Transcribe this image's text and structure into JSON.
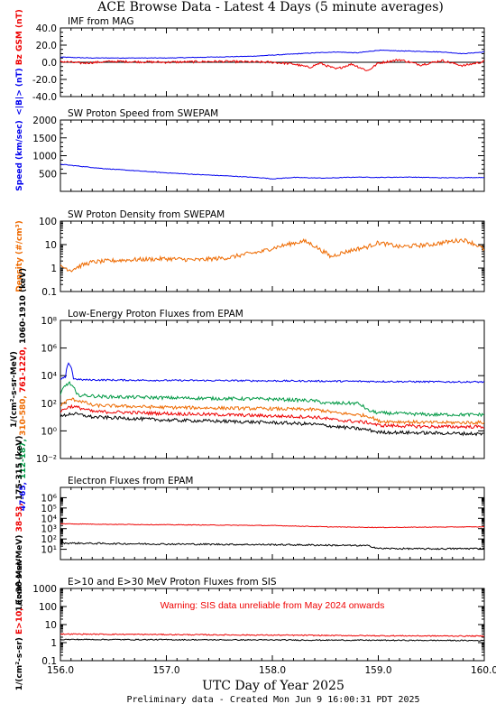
{
  "page": {
    "title": "ACE Browse Data - Latest 4 Days (5 minute averages)",
    "xlabel": "UTC Day of Year 2025",
    "footer": "Preliminary data - Created Mon Jun  9 16:00:31 PDT 2025"
  },
  "colors": {
    "blue": "#0000ee",
    "red": "#ee0000",
    "orange": "#ee6a00",
    "green": "#009944",
    "black": "#000000"
  },
  "x_axis": {
    "range": [
      156.0,
      160.0
    ],
    "ticks": [
      156.0,
      157.0,
      158.0,
      159.0,
      160.0
    ],
    "tick_labels": [
      "156.0",
      "157.0",
      "158.0",
      "159.0",
      "160.0"
    ]
  },
  "chart_data": [
    {
      "type": "line",
      "title": "IMF from MAG",
      "scale": "linear",
      "ylim": [
        -40,
        40
      ],
      "yticks": [
        -40,
        -20,
        0,
        20,
        40
      ],
      "ytick_labels": [
        "-40.0",
        "-20.0",
        "0.0",
        "20.0",
        "40.0"
      ],
      "zero_line": true,
      "ylabel_parts": [
        {
          "text": "<|B|> (nT)",
          "color": "#0000ee"
        },
        {
          "text": "Bz GSM (nT)",
          "color": "#ee0000"
        }
      ],
      "series": [
        {
          "label": "<|B|>",
          "color": "#0000ee",
          "noise": 0.35,
          "x": [
            156.0,
            156.3,
            156.6,
            157.0,
            157.4,
            157.8,
            158.1,
            158.4,
            158.6,
            158.8,
            159.0,
            159.3,
            159.6,
            159.8,
            160.0
          ],
          "y": [
            6,
            5,
            5,
            5,
            6,
            7,
            9,
            11,
            12,
            11,
            14,
            13,
            12,
            10,
            12
          ]
        },
        {
          "label": "Bz GSM",
          "color": "#ee0000",
          "noise": 1.3,
          "x": [
            156.0,
            156.2,
            156.5,
            157.0,
            157.5,
            158.0,
            158.2,
            158.35,
            158.45,
            158.6,
            158.75,
            158.9,
            159.0,
            159.2,
            159.4,
            159.6,
            159.8,
            160.0
          ],
          "y": [
            1,
            -1,
            1,
            0,
            1,
            0,
            -2,
            -6,
            -1,
            -8,
            -2,
            -10,
            -1,
            3,
            -3,
            2,
            -4,
            1
          ]
        }
      ]
    },
    {
      "type": "line",
      "title": "SW Proton Speed from SWEPAM",
      "scale": "linear",
      "ylim": [
        0,
        2000
      ],
      "yticks": [
        500,
        1000,
        1500,
        2000
      ],
      "ytick_labels": [
        "500",
        "1000",
        "1500",
        "2000"
      ],
      "ylabel_parts": [
        {
          "text": "Speed (km/sec)",
          "color": "#0000ee"
        }
      ],
      "series": [
        {
          "label": "Speed",
          "color": "#0000ee",
          "noise": 8,
          "x": [
            156.0,
            156.2,
            156.4,
            156.6,
            156.8,
            157.0,
            157.3,
            157.6,
            157.9,
            158.0,
            158.2,
            158.5,
            158.8,
            159.0,
            159.3,
            159.6,
            160.0
          ],
          "y": [
            760,
            700,
            640,
            600,
            560,
            520,
            470,
            430,
            380,
            350,
            390,
            370,
            400,
            390,
            400,
            380,
            390
          ]
        }
      ]
    },
    {
      "type": "line",
      "title": "SW Proton Density from SWEPAM",
      "scale": "log",
      "ylim": [
        0.1,
        100
      ],
      "yticks": [
        0.1,
        1,
        10,
        100
      ],
      "ytick_labels": [
        "0.1",
        "1",
        "10",
        "100"
      ],
      "ylabel_parts": [
        {
          "text": "Density (#/cm³)",
          "color": "#ee6a00"
        }
      ],
      "series": [
        {
          "label": "Density",
          "color": "#ee6a00",
          "noise": 0.09,
          "x": [
            156.0,
            156.1,
            156.3,
            156.6,
            157.0,
            157.3,
            157.6,
            157.9,
            158.1,
            158.3,
            158.45,
            158.55,
            158.7,
            158.9,
            159.0,
            159.2,
            159.5,
            159.8,
            160.0
          ],
          "y": [
            1.2,
            0.8,
            1.8,
            2.2,
            2.5,
            2.2,
            2.8,
            5,
            9,
            14,
            6,
            3,
            5,
            8,
            12,
            8,
            10,
            16,
            6
          ]
        }
      ]
    },
    {
      "type": "line",
      "title": "Low-Energy Proton Fluxes from EPAM",
      "scale": "log",
      "ylim": [
        0.01,
        100000000
      ],
      "yticks": [
        0.01,
        1,
        100,
        10000,
        1000000,
        100000000
      ],
      "ytick_labels": [
        "10⁻²",
        "10⁰",
        "10²",
        "10⁴",
        "10⁶",
        "10⁸"
      ],
      "ylabel_parts": [
        {
          "text": "1/(cm²-s-sr-MeV)",
          "color": "#000000"
        },
        {
          "text": "47-65,",
          "color": "#0000ee"
        },
        {
          "text": "112-187,",
          "color": "#009944"
        },
        {
          "text": "310-580,",
          "color": "#ee6a00"
        },
        {
          "text": "761-1220,",
          "color": "#ee0000"
        },
        {
          "text": "1060-1910 (keV)",
          "color": "#000000"
        }
      ],
      "series": [
        {
          "label": "47-65 keV",
          "color": "#0000ee",
          "noise": 0.06,
          "x": [
            156.0,
            156.05,
            156.08,
            156.12,
            156.2,
            156.5,
            157.0,
            157.5,
            158.0,
            158.5,
            159.0,
            159.5,
            160.0
          ],
          "y": [
            5000,
            8000,
            80000,
            6000,
            5000,
            4800,
            4500,
            4400,
            4200,
            4000,
            3800,
            3600,
            3500
          ]
        },
        {
          "label": "112-187 keV",
          "color": "#009944",
          "noise": 0.12,
          "x": [
            156.0,
            156.08,
            156.15,
            156.4,
            157.0,
            157.5,
            158.0,
            158.4,
            158.5,
            158.8,
            158.9,
            159.0,
            159.5,
            160.0
          ],
          "y": [
            300,
            3000,
            400,
            300,
            250,
            220,
            200,
            150,
            100,
            100,
            30,
            20,
            15,
            15
          ]
        },
        {
          "label": "310-580 keV",
          "color": "#ee6a00",
          "noise": 0.12,
          "x": [
            156.0,
            156.1,
            156.3,
            157.0,
            157.5,
            158.0,
            158.4,
            158.6,
            158.9,
            159.0,
            159.5,
            160.0
          ],
          "y": [
            60,
            200,
            70,
            50,
            45,
            40,
            35,
            20,
            12,
            5,
            4,
            4
          ]
        },
        {
          "label": "761-1220 keV",
          "color": "#ee0000",
          "noise": 0.12,
          "x": [
            156.0,
            156.1,
            156.3,
            157.0,
            157.5,
            158.0,
            158.4,
            158.6,
            158.9,
            159.0,
            159.5,
            160.0
          ],
          "y": [
            25,
            60,
            25,
            18,
            15,
            12,
            10,
            6,
            4,
            2.5,
            2,
            2
          ]
        },
        {
          "label": "1060-1910 keV",
          "color": "#000000",
          "noise": 0.12,
          "x": [
            156.0,
            156.1,
            156.3,
            157.0,
            157.5,
            158.0,
            158.4,
            158.6,
            158.9,
            159.0,
            159.5,
            160.0
          ],
          "y": [
            10,
            18,
            10,
            6,
            5,
            4,
            3,
            2,
            1.2,
            0.8,
            0.7,
            0.6
          ]
        }
      ]
    },
    {
      "type": "line",
      "title": "Electron Fluxes from EPAM",
      "scale": "log",
      "ylim": [
        1,
        10000000
      ],
      "yticks": [
        10,
        100,
        1000,
        10000,
        100000,
        1000000
      ],
      "ytick_labels": [
        "10¹",
        "10²",
        "10³",
        "10⁴",
        "10⁵",
        "10⁶"
      ],
      "ylabel_parts": [
        {
          "text": "1/(cm²-s-sr-MeV)",
          "color": "#000000"
        },
        {
          "text": "38-53,",
          "color": "#ee0000"
        },
        {
          "text": "175-315 (keV)",
          "color": "#000000"
        }
      ],
      "series": [
        {
          "label": "38-53 keV",
          "color": "#ee0000",
          "noise": 0.03,
          "x": [
            156.0,
            156.5,
            157.0,
            157.5,
            158.0,
            158.5,
            159.0,
            159.5,
            160.0
          ],
          "y": [
            3000,
            2600,
            2400,
            2200,
            2000,
            1500,
            1300,
            1400,
            1500
          ]
        },
        {
          "label": "175-315 keV",
          "color": "#000000",
          "noise": 0.08,
          "x": [
            156.0,
            156.5,
            157.0,
            157.5,
            158.0,
            158.5,
            158.9,
            159.0,
            159.5,
            160.0
          ],
          "y": [
            40,
            35,
            32,
            30,
            28,
            25,
            22,
            12,
            11,
            12
          ]
        }
      ]
    },
    {
      "type": "line",
      "title": "E>10 and E>30 MeV Proton Fluxes from SIS",
      "scale": "log",
      "ylim": [
        0.1,
        1000
      ],
      "yticks": [
        0.1,
        1,
        10,
        100,
        1000
      ],
      "ytick_labels": [
        "0.1",
        "1",
        "10",
        "100",
        "1000"
      ],
      "annotation": {
        "text": "Warning: SIS data unreliable from May 2024 onwards",
        "color": "#ee0000"
      },
      "ylabel_parts": [
        {
          "text": "1/(cm²-s-sr)",
          "color": "#000000"
        },
        {
          "text": "E>10,",
          "color": "#ee0000"
        },
        {
          "text": "E>30 MeV",
          "color": "#000000"
        }
      ],
      "series": [
        {
          "label": "E>10 MeV",
          "color": "#ee0000",
          "noise": 0.03,
          "x": [
            156.0,
            157.0,
            158.0,
            159.0,
            160.0
          ],
          "y": [
            3.0,
            2.8,
            2.6,
            2.4,
            2.3
          ]
        },
        {
          "label": "E>30 MeV",
          "color": "#000000",
          "noise": 0.03,
          "x": [
            156.0,
            157.0,
            158.0,
            159.0,
            160.0
          ],
          "y": [
            1.5,
            1.45,
            1.4,
            1.35,
            1.3
          ]
        }
      ]
    }
  ]
}
